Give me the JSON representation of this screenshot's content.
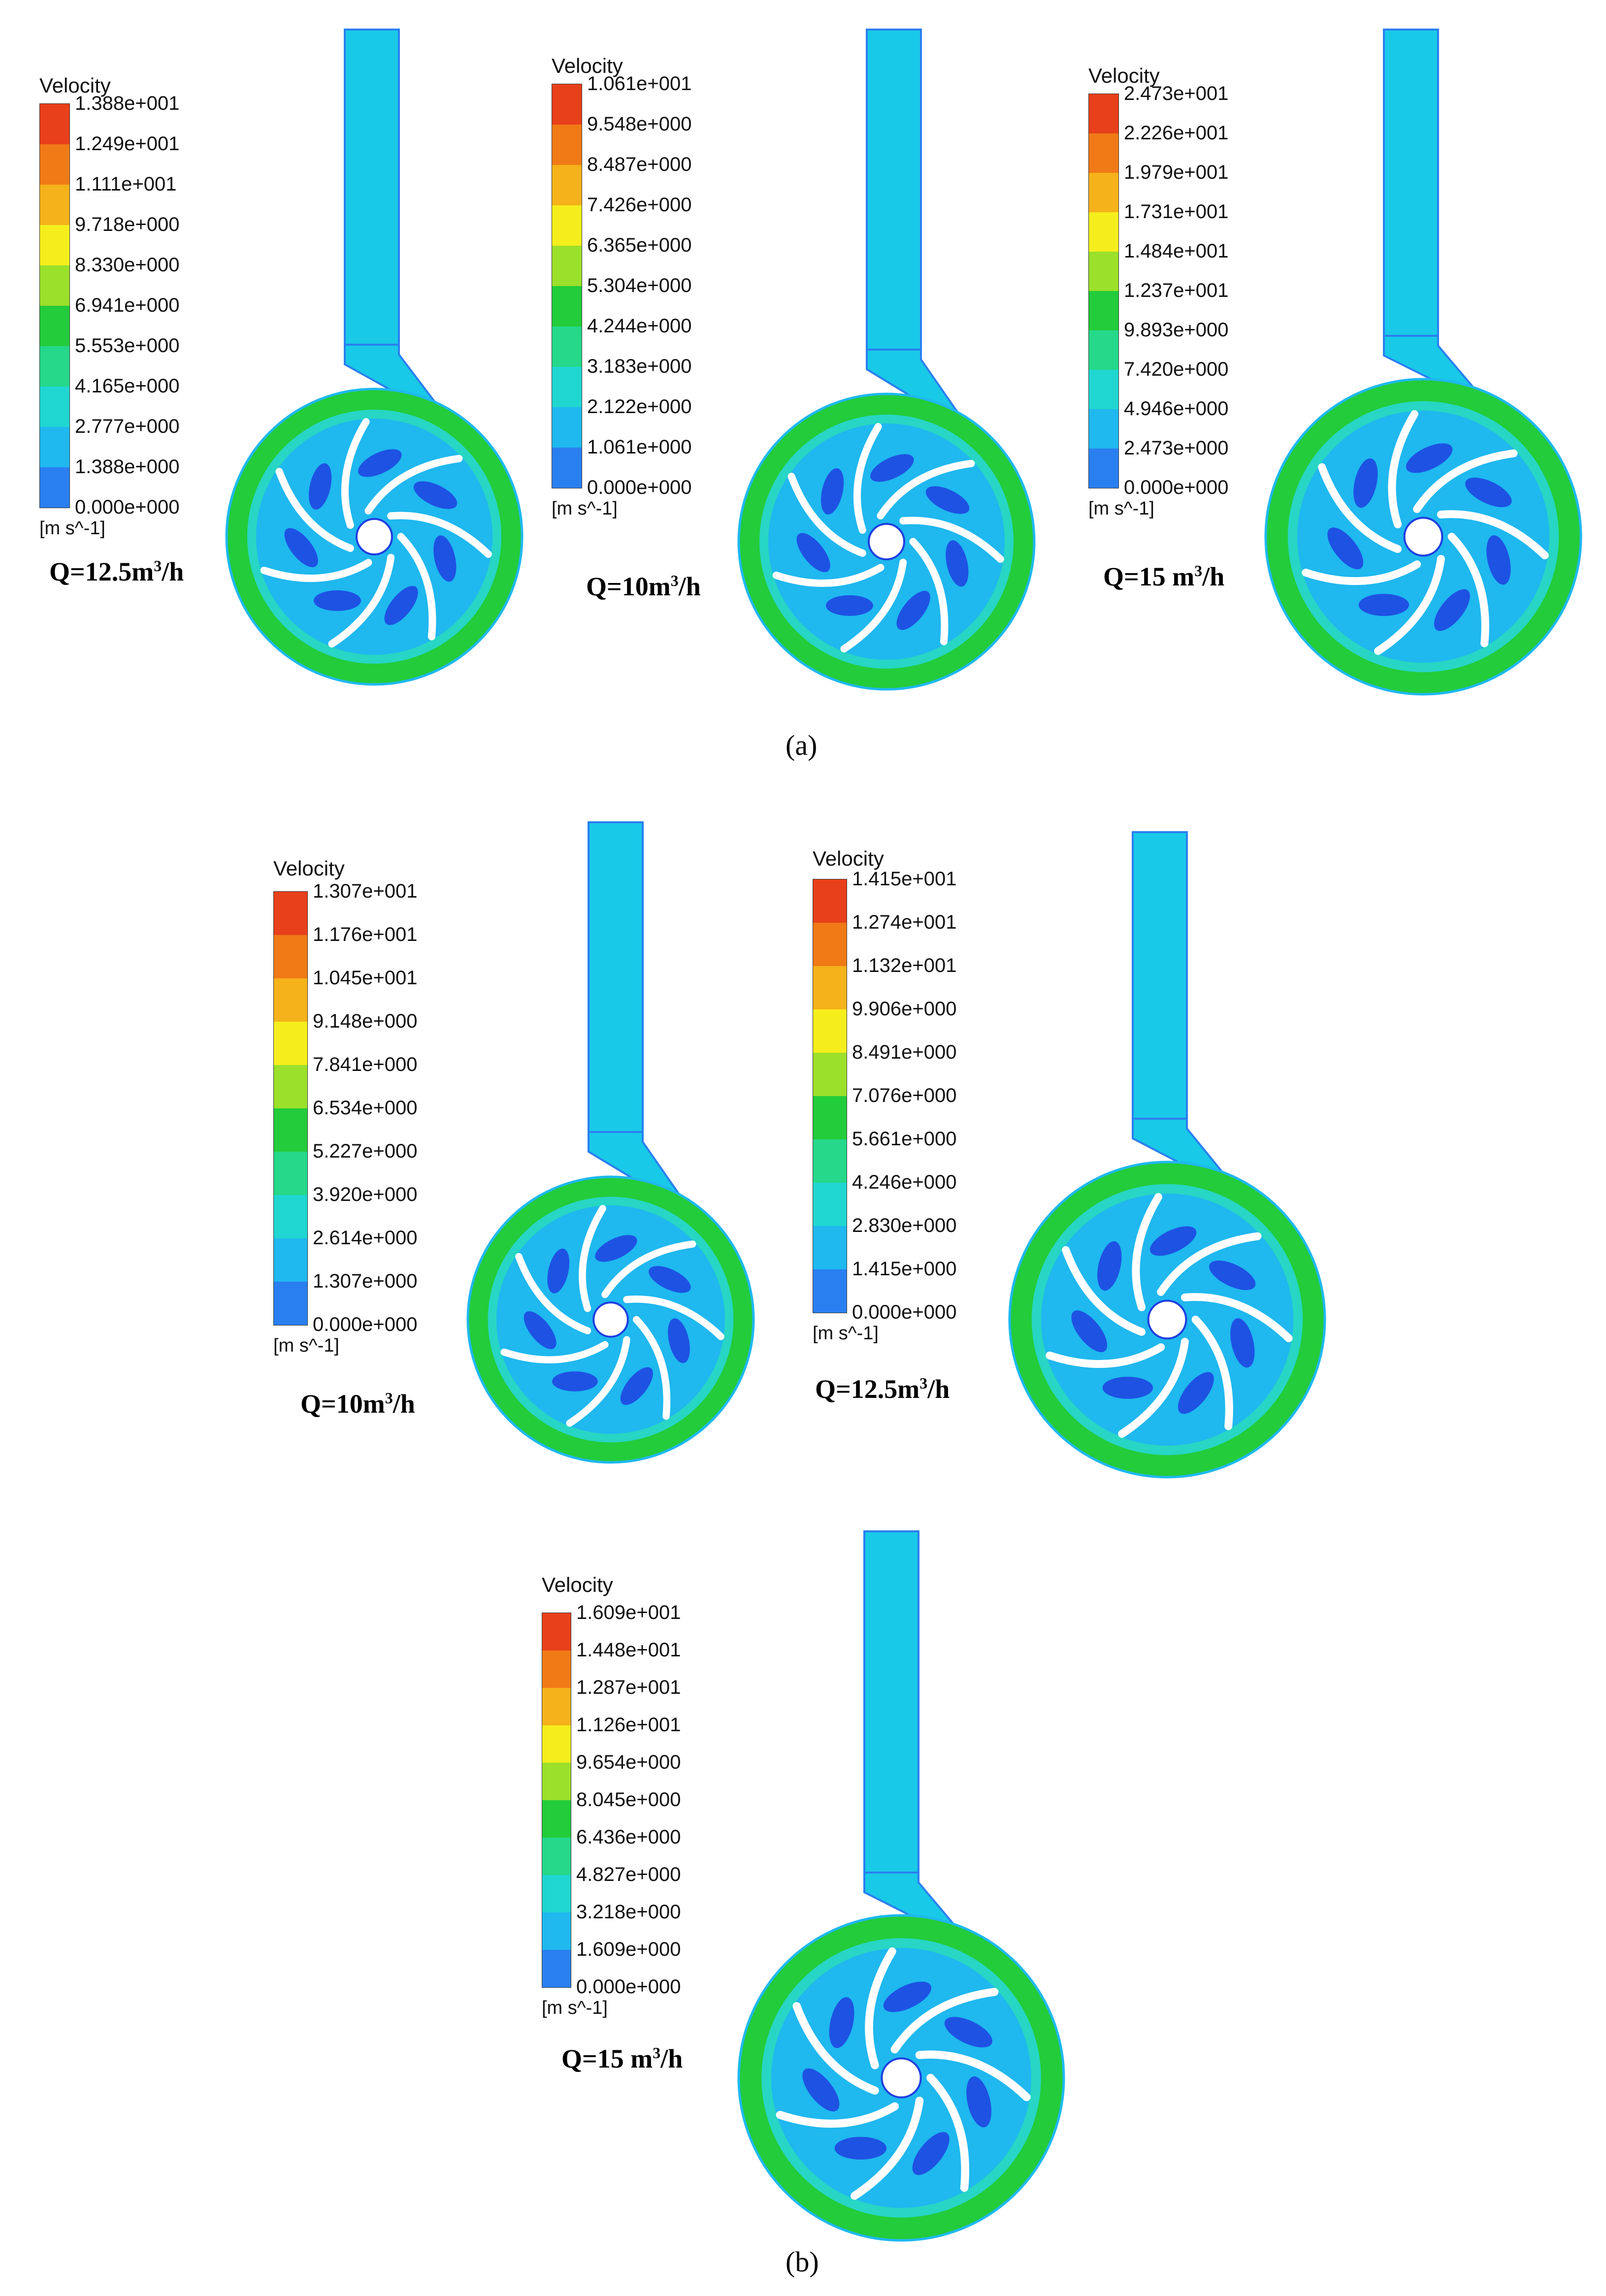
{
  "figure": {
    "sublabels": [
      "(a)",
      "(b)"
    ],
    "legend_title": "Velocity",
    "legend_unit": "[m s^-1]",
    "colors": {
      "scale": [
        "#1f3fe0",
        "#2a7ff0",
        "#1fb8ef",
        "#20d6d0",
        "#25d88a",
        "#22cc3a",
        "#9be02a",
        "#f5ee1c",
        "#f5b21a",
        "#f07a16",
        "#e8401a"
      ],
      "blade": "#ffffff",
      "volute_fill": "#27d6c4",
      "pipe_fill": "#19c9e8"
    },
    "panels": [
      {
        "group": "(a)",
        "caption": "Q=12.5m",
        "caption_tail": "/h",
        "legend_ticks": [
          "1.388e+001",
          "1.249e+001",
          "1.111e+001",
          "9.718e+000",
          "8.330e+000",
          "6.941e+000",
          "5.553e+000",
          "4.165e+000",
          "2.777e+000",
          "1.388e+000",
          "0.000e+000"
        ]
      },
      {
        "group": "(a)",
        "caption": "Q=10m",
        "caption_tail": "/h",
        "legend_ticks": [
          "1.061e+001",
          "9.548e+000",
          "8.487e+000",
          "7.426e+000",
          "6.365e+000",
          "5.304e+000",
          "4.244e+000",
          "3.183e+000",
          "2.122e+000",
          "1.061e+000",
          "0.000e+000"
        ]
      },
      {
        "group": "(a)",
        "caption": "Q=15 m",
        "caption_tail": "/h",
        "legend_ticks": [
          "2.473e+001",
          "2.226e+001",
          "1.979e+001",
          "1.731e+001",
          "1.484e+001",
          "1.237e+001",
          "9.893e+000",
          "7.420e+000",
          "4.946e+000",
          "2.473e+000",
          "0.000e+000"
        ]
      },
      {
        "group": "(b)",
        "caption": "Q=10m",
        "caption_tail": "/h",
        "legend_ticks": [
          "1.307e+001",
          "1.176e+001",
          "1.045e+001",
          "9.148e+000",
          "7.841e+000",
          "6.534e+000",
          "5.227e+000",
          "3.920e+000",
          "2.614e+000",
          "1.307e+000",
          "0.000e+000"
        ]
      },
      {
        "group": "(b)",
        "caption": "Q=12.5m",
        "caption_tail": "/h",
        "legend_ticks": [
          "1.415e+001",
          "1.274e+001",
          "1.132e+001",
          "9.906e+000",
          "8.491e+000",
          "7.076e+000",
          "5.661e+000",
          "4.246e+000",
          "2.830e+000",
          "1.415e+000",
          "0.000e+000"
        ]
      },
      {
        "group": "(b)",
        "caption": "Q=15 m",
        "caption_tail": "/h",
        "legend_ticks": [
          "1.609e+001",
          "1.448e+001",
          "1.287e+001",
          "1.126e+001",
          "9.654e+000",
          "8.045e+000",
          "6.436e+000",
          "4.827e+000",
          "3.218e+000",
          "1.609e+000",
          "0.000e+000"
        ]
      }
    ],
    "caption_sup": "3"
  }
}
